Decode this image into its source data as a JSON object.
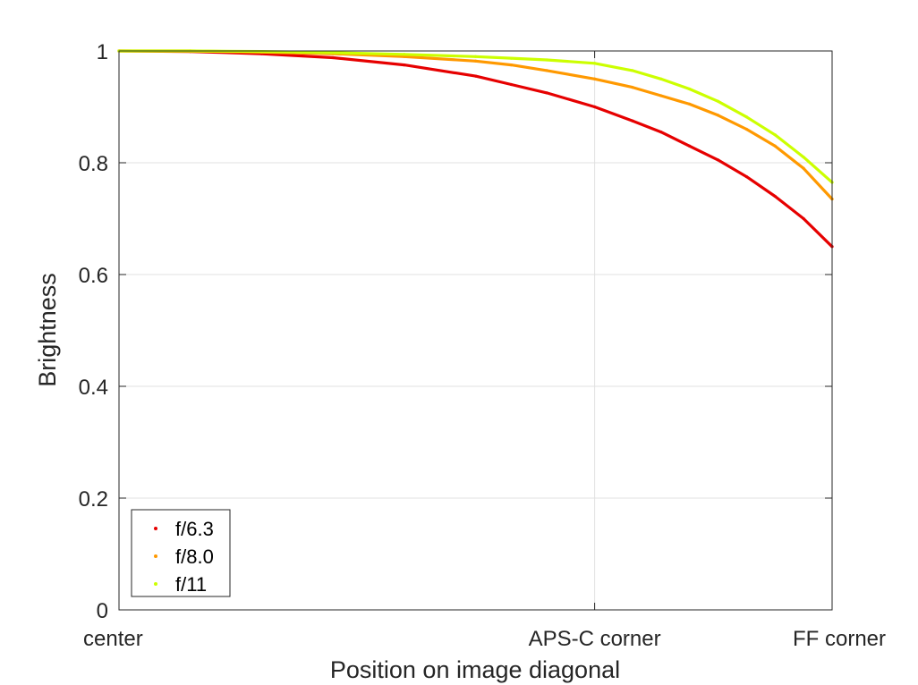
{
  "chart_data": {
    "type": "scatter",
    "title": "",
    "xlabel": "Position on image diagonal",
    "ylabel": "Brightness",
    "x_ticks": [
      {
        "label": "center",
        "value": 0
      },
      {
        "label": "APS-C corner",
        "value": 0.667
      },
      {
        "label": "FF corner",
        "value": 1
      }
    ],
    "xlim": [
      0,
      1
    ],
    "ylim": [
      0,
      1
    ],
    "y_ticks": [
      0,
      0.2,
      0.4,
      0.6,
      0.8,
      1
    ],
    "y_tick_labels": [
      "0",
      "0.2",
      "0.4",
      "0.6",
      "0.8",
      "1"
    ],
    "grid": true,
    "legend_position": "bottom-left",
    "series": [
      {
        "name": "f/6.3",
        "color": "#e60000",
        "x": [
          0,
          0.1,
          0.2,
          0.3,
          0.4,
          0.5,
          0.55,
          0.6,
          0.667,
          0.72,
          0.76,
          0.8,
          0.84,
          0.88,
          0.92,
          0.96,
          1.0
        ],
        "y": [
          1.0,
          0.999,
          0.995,
          0.988,
          0.975,
          0.955,
          0.94,
          0.925,
          0.9,
          0.875,
          0.855,
          0.83,
          0.805,
          0.775,
          0.74,
          0.7,
          0.65
        ]
      },
      {
        "name": "f/8.0",
        "color": "#ff9900",
        "x": [
          0,
          0.1,
          0.2,
          0.3,
          0.4,
          0.5,
          0.55,
          0.6,
          0.667,
          0.72,
          0.76,
          0.8,
          0.84,
          0.88,
          0.92,
          0.96,
          1.0
        ],
        "y": [
          1.0,
          1.0,
          0.998,
          0.995,
          0.99,
          0.982,
          0.975,
          0.965,
          0.95,
          0.935,
          0.92,
          0.905,
          0.885,
          0.86,
          0.83,
          0.79,
          0.735
        ]
      },
      {
        "name": "f/11",
        "color": "#ccff00",
        "x": [
          0,
          0.1,
          0.2,
          0.3,
          0.4,
          0.5,
          0.55,
          0.6,
          0.667,
          0.72,
          0.76,
          0.8,
          0.84,
          0.88,
          0.92,
          0.96,
          1.0
        ],
        "y": [
          1.0,
          1.0,
          0.999,
          0.997,
          0.994,
          0.99,
          0.987,
          0.984,
          0.978,
          0.965,
          0.95,
          0.932,
          0.91,
          0.882,
          0.85,
          0.81,
          0.765
        ]
      }
    ]
  }
}
